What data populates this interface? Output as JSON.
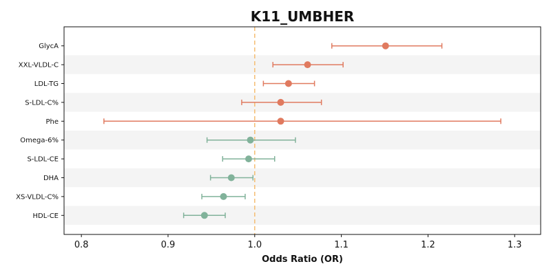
{
  "chart_data": {
    "type": "forest",
    "title": "K11_UMBHER",
    "xlabel": "Odds Ratio (OR)",
    "xlim": [
      0.78,
      1.33
    ],
    "xticks": [
      0.8,
      0.9,
      1.0,
      1.1,
      1.2,
      1.3
    ],
    "xtick_labels": [
      "0.8",
      "0.9",
      "1.0",
      "1.1",
      "1.2",
      "1.3"
    ],
    "reference_line": 1.0,
    "reference_color": "#f5c07a",
    "positive_color": "#e07a5f",
    "negative_color": "#81b29a",
    "band_color": "#f4f4f4",
    "rows": [
      {
        "label": "GlycA",
        "or": 1.151,
        "lo": 1.089,
        "hi": 1.216
      },
      {
        "label": "XXL-VLDL-C",
        "or": 1.061,
        "lo": 1.021,
        "hi": 1.102
      },
      {
        "label": "LDL-TG",
        "or": 1.039,
        "lo": 1.01,
        "hi": 1.069
      },
      {
        "label": "S-LDL-C%",
        "or": 1.03,
        "lo": 0.985,
        "hi": 1.077
      },
      {
        "label": "Phe",
        "or": 1.03,
        "lo": 0.826,
        "hi": 1.284
      },
      {
        "label": "Omega-6%",
        "or": 0.995,
        "lo": 0.945,
        "hi": 1.047
      },
      {
        "label": "S-LDL-CE",
        "or": 0.993,
        "lo": 0.963,
        "hi": 1.023
      },
      {
        "label": "DHA",
        "or": 0.973,
        "lo": 0.949,
        "hi": 0.998
      },
      {
        "label": "XS-VLDL-C%",
        "or": 0.964,
        "lo": 0.939,
        "hi": 0.989
      },
      {
        "label": "HDL-CE",
        "or": 0.942,
        "lo": 0.918,
        "hi": 0.966
      }
    ]
  }
}
